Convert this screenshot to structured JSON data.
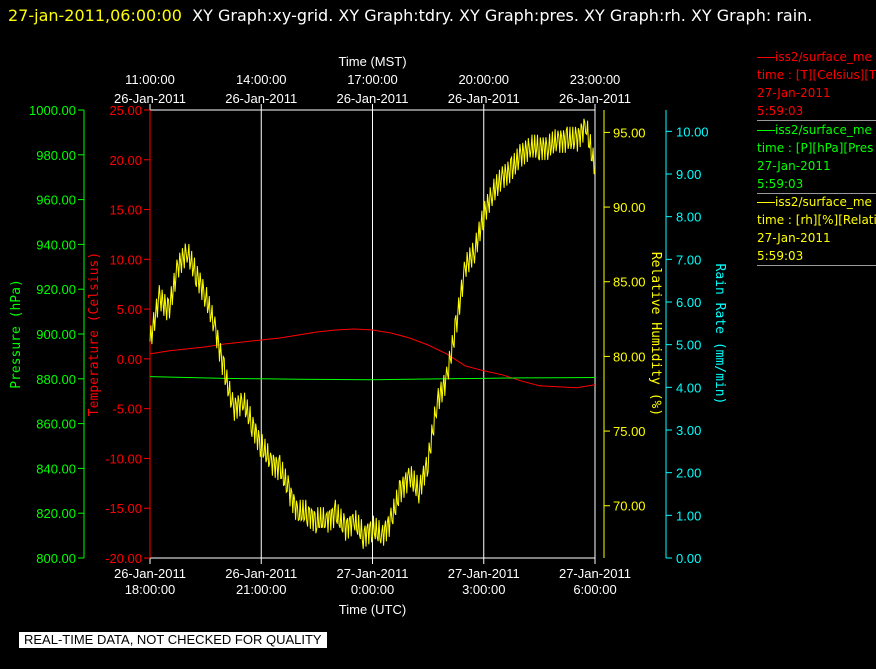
{
  "header": {
    "timestamp": "27-jan-2011,06:00:00",
    "title": "XY Graph:xy-grid.  XY Graph:tdry.  XY Graph:pres.  XY Graph:rh.  XY Graph: rain."
  },
  "banner": "REAL-TIME DATA, NOT CHECKED FOR QUALITY",
  "legend": [
    {
      "name": "iss2/surface_me",
      "unit": "time : [T][Celsius][T",
      "date": "27-Jan-2011",
      "time": "5:59:03",
      "color": "#ff0000"
    },
    {
      "name": "iss2/surface_me",
      "unit": "time : [P][hPa][Pres",
      "date": "27-Jan-2011",
      "time": "5:59:03",
      "color": "#00ff00"
    },
    {
      "name": "iss2/surface_me",
      "unit": "time : [rh][%][Relati",
      "date": "27-Jan-2011",
      "time": "5:59:03",
      "color": "#ffff00"
    }
  ],
  "chart_data": {
    "type": "line",
    "x_range_hours": [
      18,
      30
    ],
    "top_axis": {
      "title": "Time (MST)",
      "ticks": [
        {
          "hour": 18,
          "line1": "11:00:00",
          "line2": "26-Jan-2011"
        },
        {
          "hour": 21,
          "line1": "14:00:00",
          "line2": "26-Jan-2011"
        },
        {
          "hour": 24,
          "line1": "17:00:00",
          "line2": "26-Jan-2011"
        },
        {
          "hour": 27,
          "line1": "20:00:00",
          "line2": "26-Jan-2011"
        },
        {
          "hour": 30,
          "line1": "23:00:00",
          "line2": "26-Jan-2011"
        }
      ]
    },
    "bottom_axis": {
      "title": "Time (UTC)",
      "ticks": [
        {
          "hour": 18,
          "line1": "26-Jan-2011",
          "line2": "18:00:00"
        },
        {
          "hour": 21,
          "line1": "26-Jan-2011",
          "line2": "21:00:00"
        },
        {
          "hour": 24,
          "line1": "27-Jan-2011",
          "line2": "0:00:00"
        },
        {
          "hour": 27,
          "line1": "27-Jan-2011",
          "line2": "3:00:00"
        },
        {
          "hour": 30,
          "line1": "27-Jan-2011",
          "line2": "6:00:00"
        }
      ]
    },
    "axes": {
      "pressure": {
        "label": "Pressure (hPa)",
        "color": "#00ff00",
        "ylim": [
          800,
          1000
        ],
        "ticks": [
          "800.00",
          "820.00",
          "840.00",
          "860.00",
          "880.00",
          "900.00",
          "920.00",
          "940.00",
          "960.00",
          "980.00",
          "1000.00"
        ]
      },
      "temperature": {
        "label": "Temperature (Celsius)",
        "color": "#ff0000",
        "ylim": [
          -20,
          25
        ],
        "ticks": [
          "-20.00",
          "-15.00",
          "-10.00",
          "-5.00",
          "0.00",
          "5.00",
          "10.00",
          "15.00",
          "20.00",
          "25.00"
        ]
      },
      "humidity": {
        "label": "Relative Humidity (%)",
        "color": "#ffff00",
        "ylim": [
          66.5,
          96.5
        ],
        "ticks": [
          "70.00",
          "75.00",
          "80.00",
          "85.00",
          "90.00",
          "95.00"
        ]
      },
      "rain": {
        "label": "Rain Rate (mm/min)",
        "color": "#00ffff",
        "ylim": [
          0,
          10.5
        ],
        "ticks": [
          "0.00",
          "1.00",
          "2.00",
          "3.00",
          "4.00",
          "5.00",
          "6.00",
          "7.00",
          "8.00",
          "9.00",
          "10.00"
        ]
      }
    },
    "series": [
      {
        "axis": "temperature",
        "x": [
          18,
          18.5,
          19,
          19.5,
          20,
          20.5,
          21,
          21.5,
          22,
          22.5,
          23,
          23.5,
          24,
          24.5,
          25,
          25.5,
          26,
          26.5,
          27,
          27.5,
          28,
          28.5,
          29,
          29.5,
          30
        ],
        "values": [
          0.5,
          0.8,
          1.0,
          1.2,
          1.5,
          1.7,
          1.9,
          2.1,
          2.4,
          2.7,
          2.9,
          3.0,
          2.9,
          2.6,
          2.1,
          1.4,
          0.5,
          -0.7,
          -1.2,
          -1.6,
          -2.2,
          -2.7,
          -2.8,
          -2.9,
          -2.6
        ]
      },
      {
        "axis": "pressure",
        "x": [
          18,
          19,
          20,
          21,
          22,
          23,
          24,
          25,
          26,
          27,
          28,
          29,
          30
        ],
        "values": [
          881,
          880.6,
          880.2,
          880,
          879.8,
          879.7,
          879.6,
          879.8,
          880,
          880.2,
          880.4,
          880.5,
          880.6
        ]
      },
      {
        "axis": "humidity",
        "x": [
          18,
          18.25,
          18.5,
          18.75,
          19,
          19.25,
          19.5,
          19.75,
          20,
          20.25,
          20.5,
          20.75,
          21,
          21.25,
          21.5,
          21.75,
          22,
          22.25,
          22.5,
          22.75,
          23,
          23.25,
          23.5,
          23.75,
          24,
          24.25,
          24.5,
          24.75,
          25,
          25.25,
          25.5,
          25.75,
          26,
          26.25,
          26.5,
          26.75,
          27,
          27.25,
          27.5,
          27.75,
          28,
          28.25,
          28.5,
          28.75,
          29,
          29.25,
          29.5,
          29.75,
          30
        ],
        "values": [
          81,
          84,
          83,
          86,
          87,
          85.5,
          84,
          82,
          79,
          76.5,
          77,
          75.5,
          74,
          73,
          72.5,
          71,
          69.5,
          69.5,
          69,
          69,
          69.5,
          68.5,
          69,
          68,
          68.5,
          68,
          69,
          71,
          72,
          71,
          73,
          77,
          78.5,
          82,
          86,
          87,
          89.5,
          91,
          92,
          92.5,
          93.5,
          94,
          94,
          94,
          94.5,
          94.5,
          94.5,
          95.5,
          92.5
        ]
      }
    ]
  }
}
